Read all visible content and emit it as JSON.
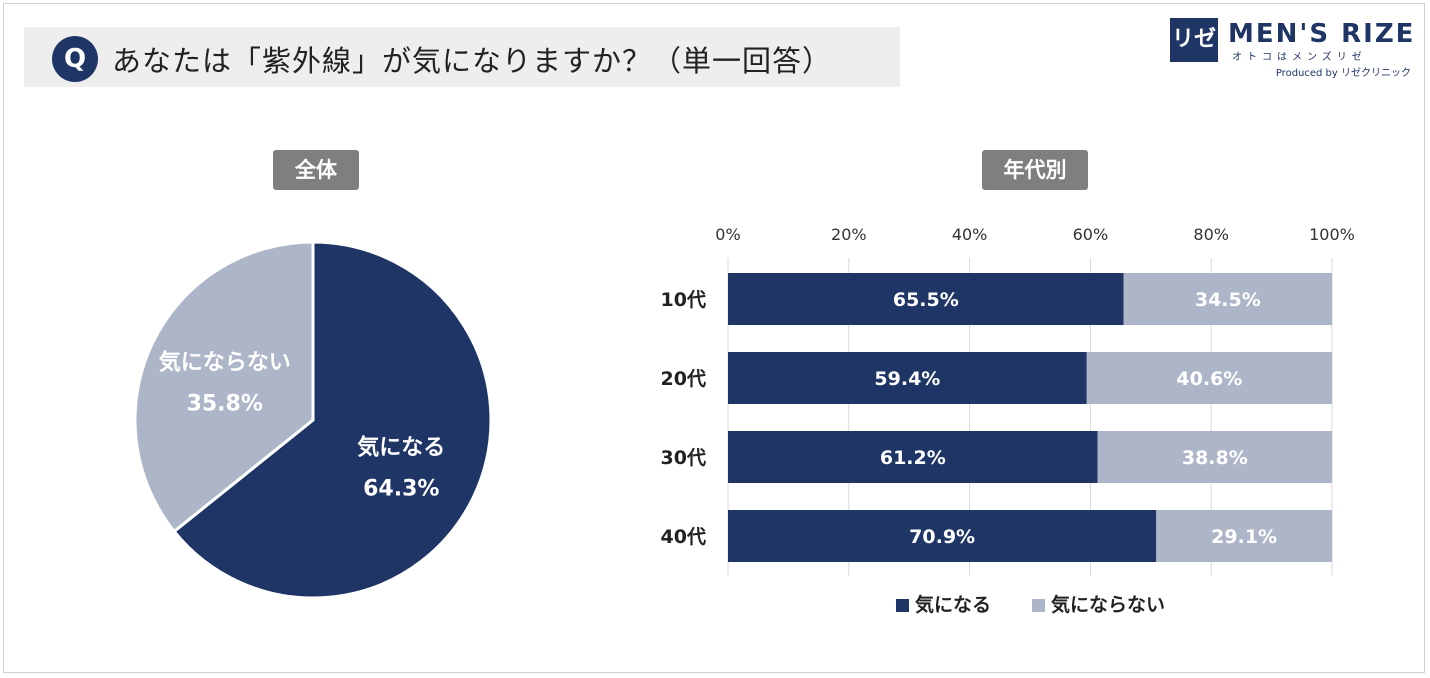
{
  "question": {
    "badge": "Q",
    "text": "あなたは「紫外線」が気になりますか？（単一回答）"
  },
  "logo": {
    "mark": "リゼ",
    "name": "MEN'S RIZE",
    "tagline": "オトコはメンズリゼ",
    "produced": "Produced by リゼクリニック"
  },
  "sections": {
    "overall": "全体",
    "by_age": "年代別"
  },
  "colors": {
    "primary": "#1f3566",
    "secondary": "#adb5c8"
  },
  "chart_data": [
    {
      "type": "pie",
      "slices": [
        {
          "name": "気になる",
          "value": 64.3,
          "label": "64.3%"
        },
        {
          "name": "気にならない",
          "value": 35.8,
          "label": "35.8%"
        }
      ]
    },
    {
      "type": "bar",
      "orientation": "horizontal",
      "stacked": true,
      "categories": [
        "10代",
        "20代",
        "30代",
        "40代"
      ],
      "series": [
        {
          "name": "気になる",
          "values": [
            65.5,
            59.4,
            61.2,
            70.9
          ],
          "labels": [
            "65.5%",
            "59.4%",
            "61.2%",
            "70.9%"
          ]
        },
        {
          "name": "気にならない",
          "values": [
            34.5,
            40.6,
            38.8,
            29.1
          ],
          "labels": [
            "34.5%",
            "40.6%",
            "38.8%",
            "29.1%"
          ]
        }
      ],
      "xlim": [
        0,
        100
      ],
      "xticks": [
        "0%",
        "20%",
        "40%",
        "60%",
        "80%",
        "100%"
      ],
      "grid": true,
      "legend": "bottom"
    }
  ]
}
